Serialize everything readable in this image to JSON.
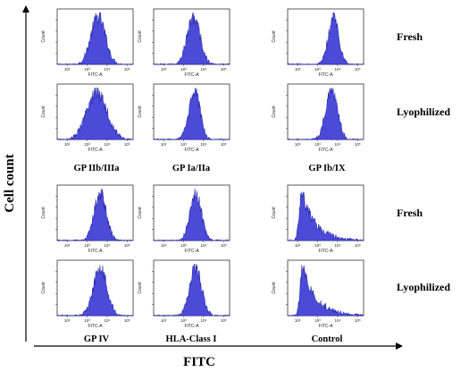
{
  "chart_data": {
    "type": "area",
    "description_kind": "flow-cytometry-histogram-grid",
    "x_axis_title": "FITC",
    "y_axis_title": "Cell count",
    "panel_xlabel": "FITC-A",
    "panel_ylabel": "Count",
    "x_scale": "log",
    "x_ticks": [
      "10²",
      "10³",
      "10⁴",
      "10⁵"
    ],
    "fill_color": "#4b4bd8",
    "edge_color": "#1a1aa0",
    "rows": [
      "Fresh",
      "Lyophilized",
      "Fresh",
      "Lyophilized"
    ],
    "columns": [
      [
        "GP IIb/IIIa",
        "GP Ia/IIa",
        "GP Ib/IX"
      ],
      [
        "GP IV",
        "HLA-Class I",
        "Control"
      ]
    ],
    "panels": [
      {
        "row": 0,
        "col": 0,
        "marker": "GP IIb/IIIa",
        "condition": "Fresh",
        "shape": "gaussian",
        "peak_log10": 3.55,
        "width_log10": 0.36
      },
      {
        "row": 0,
        "col": 1,
        "marker": "GP Ia/IIa",
        "condition": "Fresh",
        "shape": "gaussian",
        "peak_log10": 3.5,
        "width_log10": 0.32
      },
      {
        "row": 0,
        "col": 2,
        "marker": "GP Ib/IX",
        "condition": "Fresh",
        "shape": "gaussian",
        "peak_log10": 3.8,
        "width_log10": 0.26
      },
      {
        "row": 1,
        "col": 0,
        "marker": "GP IIb/IIIa",
        "condition": "Lyophilized",
        "shape": "gaussian",
        "peak_log10": 3.5,
        "width_log10": 0.5
      },
      {
        "row": 1,
        "col": 1,
        "marker": "GP Ia/IIa",
        "condition": "Lyophilized",
        "shape": "gaussian",
        "peak_log10": 3.55,
        "width_log10": 0.28
      },
      {
        "row": 1,
        "col": 2,
        "marker": "GP Ib/IX",
        "condition": "Lyophilized",
        "shape": "gaussian",
        "peak_log10": 3.7,
        "width_log10": 0.3
      },
      {
        "row": 2,
        "col": 0,
        "marker": "GP IV",
        "condition": "Fresh",
        "shape": "gaussian",
        "peak_log10": 3.65,
        "width_log10": 0.3
      },
      {
        "row": 2,
        "col": 1,
        "marker": "HLA-Class I",
        "condition": "Fresh",
        "shape": "gaussian",
        "peak_log10": 3.6,
        "width_log10": 0.28
      },
      {
        "row": 2,
        "col": 2,
        "marker": "Control",
        "condition": "Fresh",
        "shape": "skewed",
        "peak_log10": 2.2,
        "width_log10": 0.7
      },
      {
        "row": 3,
        "col": 0,
        "marker": "GP IV",
        "condition": "Lyophilized",
        "shape": "gaussian",
        "peak_log10": 3.65,
        "width_log10": 0.34
      },
      {
        "row": 3,
        "col": 1,
        "marker": "HLA-Class I",
        "condition": "Lyophilized",
        "shape": "gaussian",
        "peak_log10": 3.6,
        "width_log10": 0.3
      },
      {
        "row": 3,
        "col": 2,
        "marker": "Control",
        "condition": "Lyophilized",
        "shape": "skewed",
        "peak_log10": 2.25,
        "width_log10": 0.7
      }
    ]
  }
}
